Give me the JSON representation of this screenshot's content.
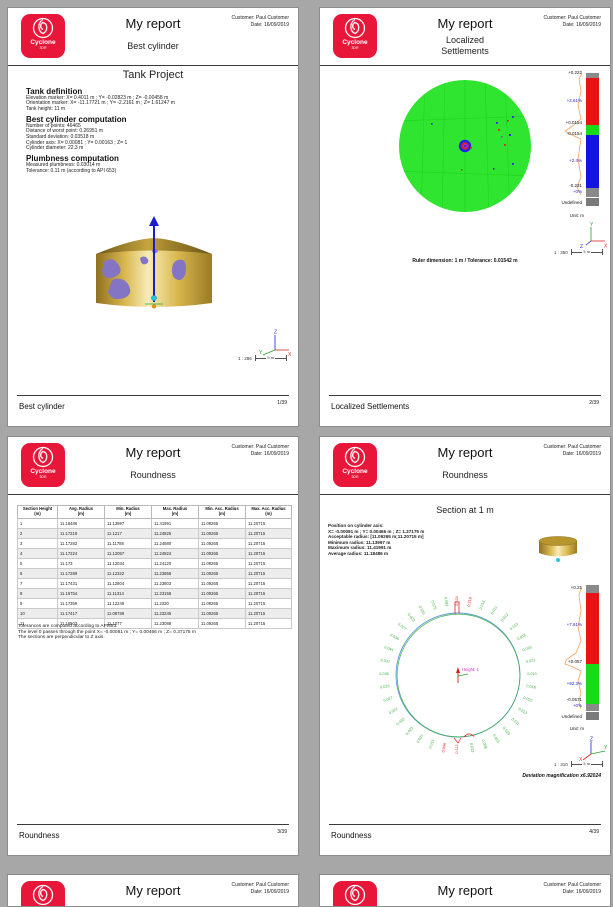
{
  "background": "#a7a7a7",
  "brand": {
    "name": "Cyclone",
    "sub": "3DR",
    "color": "#e8173a"
  },
  "header": {
    "title": "My report",
    "customer": "Customer: Paul Customer",
    "date": "Date: 16/09/2019"
  },
  "page1": {
    "subtitle": "Best cylinder",
    "project_title": "Tank Project",
    "sections": [
      {
        "heading": "Tank definition",
        "lines": [
          "Elevation marker: X= 0.4011 m ; Y= -0.02823 m ; Z= -0.00458 m",
          "Orientation marker: X= -11.17721 m ; Y= -2.2161 m ; Z= 1.61247 m",
          "Tank height: 11 m"
        ]
      },
      {
        "heading": "Best cylinder computation",
        "lines": [
          "Number of points:  46465",
          "Distance of worst point: 0.26951 m",
          "Standard deviation: 0.03518 m",
          "Cylinder axis: X= 0.00081 ; Y= 0.00163 ; Z= 1",
          "Cylinder diameter: 22.3 m"
        ]
      },
      {
        "heading": "Plumbness computation",
        "lines": [
          "Measured plumbness: 0.03014 m",
          "Tolerance: 0.11 m (according to API 653)"
        ]
      }
    ],
    "axis": {
      "x": "X",
      "y": "Y",
      "z": "Z"
    },
    "scale": "1 : 286",
    "scale_len": "5 m",
    "footer": {
      "label": "Best cylinder",
      "page": "1/39"
    }
  },
  "page2": {
    "subtitle_line1": "Localized",
    "subtitle_line2": "Settlements",
    "colorbar": {
      "max": "+0.222",
      "pct_red": "+2.61%",
      "upper": "+0.0154",
      "lower": "-0.0154",
      "pct_blue": "+2.4%",
      "min": "-0.231",
      "pct_min": "+0%",
      "undefined_label": "Undefined",
      "unit": "Unit: m",
      "colors": {
        "high": "#e81414",
        "pass": "#18da18",
        "low": "#1414e0",
        "cap": "#8a8a8a"
      }
    },
    "caption": "Ruler dimension: 1 m / Tolerance: 0.01542 m",
    "axis": {
      "x": "X",
      "y": "Y",
      "z": "Z"
    },
    "scale": "1 : 350",
    "scale_len": "5 m",
    "footer": {
      "label": "Localized Settlements",
      "page": "2/39"
    }
  },
  "page3": {
    "subtitle": "Roundness",
    "table": {
      "unit": "(m)",
      "headers": [
        "Section Height",
        "Avg. Radius",
        "Min. Radius",
        "Max. Radius",
        "Min. Acc. Radius",
        "Max. Acc. Radius"
      ],
      "rows": [
        [
          "1",
          "11.18486",
          "11.13997",
          "11.41991",
          "11.09265",
          "11.20715"
        ],
        [
          "2",
          "11.17219",
          "11.1217",
          "11.24825",
          "11.09265",
          "11.20715"
        ],
        [
          "3",
          "11.17282",
          "11.11788",
          "11.24880",
          "11.09265",
          "11.20715"
        ],
        [
          "4",
          "11.17224",
          "11.12057",
          "11.24824",
          "11.09265",
          "11.20715"
        ],
        [
          "5",
          "11.173",
          "11.12034",
          "11.24120",
          "11.09265",
          "11.20715"
        ],
        [
          "6",
          "11.17289",
          "11.12322",
          "11.23858",
          "11.09265",
          "11.20715"
        ],
        [
          "7",
          "11.17431",
          "11.12804",
          "11.23803",
          "11.09265",
          "11.20715"
        ],
        [
          "8",
          "11.16754",
          "11.11314",
          "11.23158",
          "11.09265",
          "11.20715"
        ],
        [
          "9",
          "11.17359",
          "11.12249",
          "11.2330",
          "11.09265",
          "11.20715"
        ],
        [
          "10",
          "11.17417",
          "11.08789",
          "11.23245",
          "11.09265",
          "11.20715"
        ],
        [
          "11",
          "11.16503",
          "11.1077",
          "11.23088",
          "11.09265",
          "11.20715"
        ]
      ]
    },
    "notes": [
      "Tolerances are computed according to API653.",
      "The level 0 passes through the point X= -0.00081 m ; Y= 0.00466 m ; Z= 0.37175 m",
      "The sections are perpendicular to Z axis."
    ],
    "footer": {
      "label": "Roundness",
      "page": "3/39"
    }
  },
  "page4": {
    "subtitle": "Roundness",
    "section_title": "Section at 1 m",
    "info_lines": [
      "Position on cylinder axis:",
      "X= -0.00081 m ; Y= 0.00466 m ; Z= 1.37175 m",
      "Acceptable radius: [11.09265 m;11.20715 m]",
      "Minimum radius: 11.13997 m",
      "Maximum radius: 11.41991 m",
      "Average radius: 11.18486 m"
    ],
    "dial": {
      "center_label": "Height: 1",
      "ticks": [
        "0.224",
        "0.218",
        "0.013",
        "0.011",
        "0.012",
        "0.010",
        "0.018",
        "0.016",
        "0.023",
        "0.010",
        "0.018",
        "0.022",
        "0.013",
        "0.011",
        "0.019",
        "0.023",
        "0.008",
        "0.013",
        "0.112",
        "0.096",
        "0.013",
        "0.021",
        "0.023",
        "0.032",
        "0.022",
        "0.027",
        "0.033",
        "0.036",
        "0.037",
        "0.044",
        "0.036",
        "0.027",
        "0.022",
        "0.031",
        "0.075",
        "0.081"
      ],
      "red_indices": [
        0,
        1,
        18,
        19
      ]
    },
    "colorbar": {
      "max": "+0.21",
      "pct_red": "+7.61%",
      "mid": "+0.057",
      "pct_green": "+92.3%",
      "min": "-0.0571",
      "pct_min": "+0%",
      "undefined_label": "Undefined",
      "unit": "Unit: m",
      "colors": {
        "high": "#e81414",
        "pass": "#18da18",
        "cap": "#8a8a8a"
      }
    },
    "axis": {
      "x": "X",
      "y": "Y",
      "z": "Z"
    },
    "scale": "1 : 310",
    "scale_len": "5 m",
    "deviation_note": "Deviation magnification x6.92024",
    "footer": {
      "label": "Roundness",
      "page": "4/39"
    }
  }
}
